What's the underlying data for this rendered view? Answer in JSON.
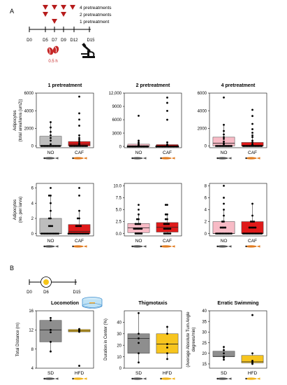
{
  "panel_a": {
    "label": "A",
    "timeline": {
      "days": [
        "D0",
        "D5",
        "D7",
        "D9",
        "D12",
        "D15"
      ],
      "legend": [
        "4 pretreatments",
        "2 pretreatments",
        "1 pretreatment"
      ],
      "duration": "0.5 h",
      "colors": {
        "marker": "#b71c1c",
        "line": "#000000"
      }
    }
  },
  "panel_b": {
    "label": "B",
    "timeline": {
      "days": [
        "D0",
        "D6",
        "D15"
      ]
    }
  },
  "colors": {
    "gray": "#bdbdbd",
    "light_red": "#f8bbc6",
    "red": "#e01a1a",
    "dark_gray": "#8e8e8e",
    "yellow": "#f7c51e",
    "fish_dark": "#555555",
    "fish_orange": "#e07b20",
    "fish_yellow": "#f1b51c"
  },
  "chart_data": [
    {
      "type": "box",
      "title": "1 pretreatment",
      "ylabel": "Adipocytes\n(total area/larva (um2))",
      "ylim": [
        -200,
        6000
      ],
      "yticks": [
        "0",
        "2000",
        "4000",
        "6000"
      ],
      "categories": [
        "NO",
        "CAF"
      ],
      "boxes": [
        {
          "name": "NO",
          "min": 0,
          "q1": 0,
          "median": 0,
          "q3": 1100,
          "max": 2700,
          "points": [
            0,
            0,
            0,
            0,
            0,
            0,
            0,
            0,
            0,
            0,
            0,
            0,
            0,
            200,
            600,
            900,
            1200,
            1600,
            2100,
            2700
          ]
        },
        {
          "name": "CAF",
          "min": 0,
          "q1": 0,
          "median": 200,
          "q3": 500,
          "max": 1200,
          "points": [
            0,
            0,
            0,
            0,
            0,
            0,
            0,
            0,
            0,
            0,
            0,
            0,
            100,
            200,
            300,
            500,
            700,
            900,
            1200,
            2300,
            3000,
            3700,
            5600
          ]
        }
      ]
    },
    {
      "type": "box",
      "title": "2 pretreatment",
      "ylabel": "",
      "ylim": [
        -300,
        12000
      ],
      "yticks": [
        "0",
        "3000",
        "6000",
        "9000",
        "12,000"
      ],
      "categories": [
        "NO",
        "CAF"
      ],
      "boxes": [
        {
          "name": "NO",
          "min": 0,
          "q1": 0,
          "median": 0,
          "q3": 500,
          "max": 1300,
          "points": [
            0,
            0,
            0,
            0,
            0,
            0,
            0,
            0,
            0,
            0,
            0,
            0,
            0,
            0,
            100,
            300,
            600,
            900,
            1300,
            6900
          ]
        },
        {
          "name": "CAF",
          "min": 0,
          "q1": 0,
          "median": 0,
          "q3": 400,
          "max": 900,
          "points": [
            0,
            0,
            0,
            0,
            0,
            0,
            0,
            0,
            0,
            0,
            0,
            0,
            0,
            0,
            0,
            0,
            100,
            200,
            400,
            900,
            6000,
            8000,
            9800,
            11000
          ]
        }
      ]
    },
    {
      "type": "box",
      "title": "4 pretreatment",
      "ylabel": "",
      "ylim": [
        -200,
        6000
      ],
      "yticks": [
        "0",
        "2000",
        "4000",
        "6000"
      ],
      "categories": [
        "NO",
        "CAF"
      ],
      "boxes": [
        {
          "name": "NO",
          "min": 0,
          "q1": 0,
          "median": 300,
          "q3": 1000,
          "max": 2400,
          "points": [
            0,
            0,
            0,
            0,
            0,
            0,
            0,
            0,
            0,
            0,
            0,
            200,
            300,
            500,
            800,
            1000,
            1300,
            1700,
            2400,
            5500
          ]
        },
        {
          "name": "CAF",
          "min": 0,
          "q1": 0,
          "median": 0,
          "q3": 400,
          "max": 1000,
          "points": [
            0,
            0,
            0,
            0,
            0,
            0,
            0,
            0,
            0,
            0,
            0,
            0,
            0,
            100,
            200,
            400,
            600,
            1000,
            1200,
            1500,
            1900,
            2500,
            3400,
            4100
          ]
        }
      ]
    },
    {
      "type": "box",
      "title": "",
      "ylabel": "Adipocytes\n(no. per larva)",
      "ylim": [
        -0.3,
        6.6
      ],
      "yticks": [
        "0",
        "2",
        "4",
        "6"
      ],
      "categories": [
        "NO",
        "CAF"
      ],
      "boxes": [
        {
          "name": "NO",
          "min": 0,
          "q1": 0,
          "median": 0,
          "q3": 2,
          "max": 5,
          "points": [
            0,
            0,
            0,
            0,
            0,
            0,
            0,
            0,
            0,
            0,
            0,
            0,
            1,
            1,
            1,
            2,
            2,
            3,
            4,
            5,
            5,
            6
          ]
        },
        {
          "name": "CAF",
          "min": 0,
          "q1": 0,
          "median": 0.3,
          "q3": 1.2,
          "max": 3,
          "points": [
            0,
            0,
            0,
            0,
            0,
            0,
            0,
            0,
            0,
            0,
            0,
            0,
            0,
            0,
            1,
            1,
            1,
            1,
            2,
            2,
            3,
            5,
            6
          ]
        }
      ]
    },
    {
      "type": "box",
      "title": "",
      "ylabel": "",
      "ylim": [
        -0.5,
        10.5
      ],
      "yticks": [
        "0.0",
        "2.5",
        "5.0",
        "7.5",
        "10.0"
      ],
      "categories": [
        "NO",
        "CAF"
      ],
      "boxes": [
        {
          "name": "NO",
          "min": 0,
          "q1": 0.2,
          "median": 1.2,
          "q3": 2.1,
          "max": 4,
          "points": [
            0,
            0,
            0,
            0,
            0,
            1,
            1,
            1,
            1,
            1,
            1,
            2,
            2,
            2,
            2,
            3,
            3,
            4,
            5,
            6
          ]
        },
        {
          "name": "CAF",
          "min": 0,
          "q1": 0.3,
          "median": 1.3,
          "q3": 2.3,
          "max": 4,
          "points": [
            0,
            0,
            0,
            0,
            0,
            1,
            1,
            1,
            1,
            1,
            2,
            2,
            2,
            2,
            3,
            3,
            4,
            4,
            6,
            6
          ]
        }
      ]
    },
    {
      "type": "box",
      "title": "",
      "ylabel": "",
      "ylim": [
        -0.4,
        8.4
      ],
      "yticks": [
        "0",
        "2",
        "4",
        "6",
        "8"
      ],
      "categories": [
        "NO",
        "CAF"
      ],
      "boxes": [
        {
          "name": "NO",
          "min": 0,
          "q1": 0,
          "median": 0,
          "q3": 2,
          "max": 4,
          "points": [
            0,
            0,
            0,
            0,
            0,
            0,
            0,
            0,
            0,
            0,
            0,
            1,
            1,
            1,
            1,
            2,
            2,
            3,
            4,
            5,
            6,
            8
          ]
        },
        {
          "name": "CAF",
          "min": 0,
          "q1": 0,
          "median": 0,
          "q3": 2,
          "max": 5,
          "points": [
            0,
            0,
            0,
            0,
            0,
            0,
            0,
            0,
            0,
            0,
            0,
            0,
            0,
            1,
            1,
            1,
            1,
            1,
            2,
            2,
            2,
            3,
            5
          ]
        }
      ]
    },
    {
      "type": "box",
      "title": "Locomotion",
      "ylabel": "Total Distance (m)",
      "ylim": [
        4,
        16
      ],
      "yticks": [
        "4",
        "8",
        "12",
        "16"
      ],
      "categories": [
        "SD",
        "HFD"
      ],
      "boxes": [
        {
          "name": "SD",
          "min": 7.5,
          "q1": 9.5,
          "median": 12,
          "q3": 14,
          "max": 14.5,
          "points": [
            7.5,
            9.5,
            11.5,
            12,
            14,
            14.5
          ]
        },
        {
          "name": "HFD",
          "min": 11.5,
          "q1": 11.6,
          "median": 11.8,
          "q3": 12.1,
          "max": 12.3,
          "points": [
            11.6,
            11.8,
            11.9,
            12.1,
            12.2,
            4.5
          ]
        }
      ]
    },
    {
      "type": "box",
      "title": "Thigmotaxis",
      "ylabel": "Duration in Center (%)",
      "ylim": [
        0,
        50
      ],
      "yticks": [
        "0",
        "10",
        "20",
        "30",
        "40"
      ],
      "categories": [
        "SD",
        "HFD"
      ],
      "boxes": [
        {
          "name": "SD",
          "min": 5,
          "q1": 13,
          "median": 26,
          "q3": 30,
          "max": 48,
          "points": [
            5,
            13,
            22,
            26,
            30,
            48
          ]
        },
        {
          "name": "HFD",
          "min": 8,
          "q1": 13,
          "median": 21,
          "q3": 30,
          "max": 36,
          "points": [
            8,
            13,
            18,
            21,
            30,
            36
          ]
        }
      ]
    },
    {
      "type": "box",
      "title": "Erratic Swimming",
      "ylabel": "(Average Absolute Turn Angle\ndegrees/min)",
      "ylim": [
        13,
        40
      ],
      "yticks": [
        "15",
        "20",
        "25",
        "30",
        "35",
        "40"
      ],
      "categories": [
        "SD",
        "HFD"
      ],
      "boxes": [
        {
          "name": "SD",
          "min": 17,
          "q1": 18.5,
          "median": 18.5,
          "q3": 21,
          "max": 23,
          "points": [
            17,
            18,
            18.5,
            20,
            21.5,
            23
          ]
        },
        {
          "name": "HFD",
          "min": 15,
          "q1": 15.5,
          "median": 16,
          "q3": 19,
          "max": 20,
          "points": [
            15,
            15.5,
            16,
            16.5,
            20,
            38
          ]
        }
      ]
    }
  ]
}
